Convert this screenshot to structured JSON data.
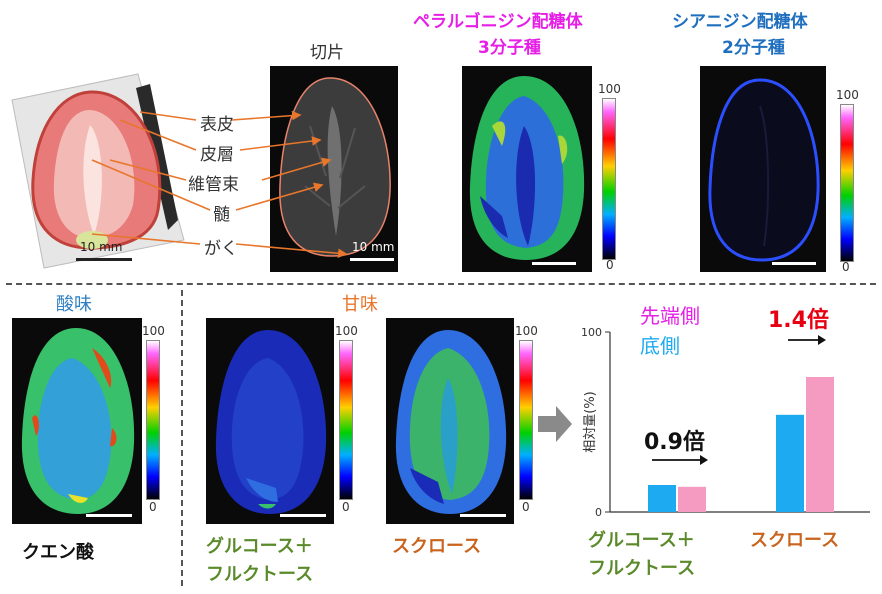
{
  "top": {
    "section_label": "切片",
    "pelargonidin_title_line1": "ペラルゴニジン配糖体",
    "pelargonidin_title_line2": "3分子種",
    "cyanidin_title_line1": "シアニジン配糖体",
    "cyanidin_title_line2": "2分子種",
    "tissue_labels": [
      "表皮",
      "皮層",
      "維管束",
      "髄",
      "がく"
    ],
    "photo_scalebar": "10 mm",
    "slice_scalebar": "10 mm",
    "colorbar_max": "100",
    "colorbar_min": "0"
  },
  "bottom": {
    "acid_heading": "酸味",
    "sweet_heading": "甘味",
    "citric_label": "クエン酸",
    "glucose_fructose_line1": "グルコース＋",
    "glucose_fructose_line2": "フルクトース",
    "sucrose_label": "スクロース",
    "colorbar_max": "100",
    "colorbar_min": "0"
  },
  "colors": {
    "magenta": "#e61ee6",
    "blue": "#1f6fbf",
    "orange": "#e8762b",
    "olive_green": "#5a8a2a",
    "brown": "#c8641e",
    "red": "#e60012",
    "cyan_bar": "#1eaaf0",
    "pink_bar": "#f59ac0"
  },
  "chart_data": {
    "type": "bar",
    "ylabel": "相対量(%)",
    "yticks": [
      "100",
      "0"
    ],
    "ylim": [
      0,
      100
    ],
    "legend": [
      "先端側",
      "底側"
    ],
    "categories": [
      "グルコース＋フルクトース",
      "スクロース"
    ],
    "series": [
      {
        "name": "底側",
        "values": [
          15,
          54
        ]
      },
      {
        "name": "先端側",
        "values": [
          14,
          75
        ]
      }
    ],
    "annotations": [
      "0.9倍",
      "1.4倍"
    ]
  }
}
